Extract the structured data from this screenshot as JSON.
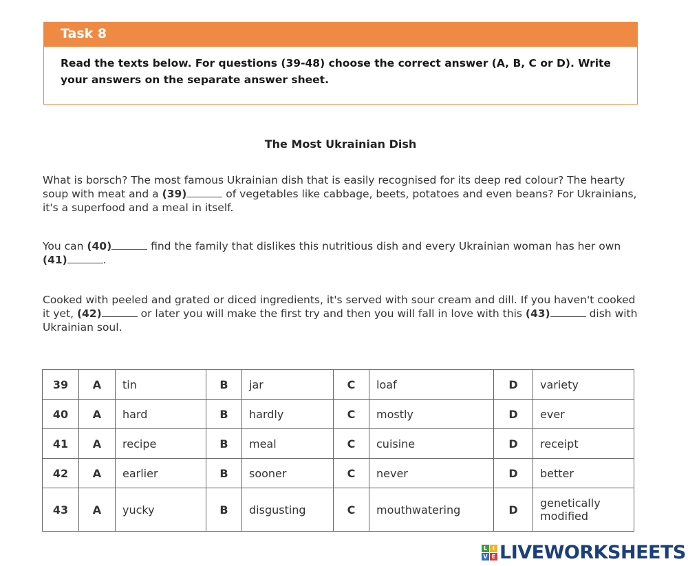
{
  "task": {
    "heading": "Task 8",
    "instructions": "Read the texts below. For questions (39-48) choose the correct answer (A, B, C or D). Write your answers on the separate answer sheet."
  },
  "title": "The Most Ukrainian Dish",
  "paragraphs": {
    "p1a": "What is borsch? The most famous Ukrainian dish that is easily recognised for its deep red colour? The hearty soup with meat and a ",
    "q39": "(39)",
    "p1b": " of vegetables like cabbage, beets, potatoes and even beans? For Ukrainians, it's a superfood and a meal in itself.",
    "p2a": "You can ",
    "q40": "(40)",
    "p2b": " find the family that dislikes this nutritious dish and every Ukrainian woman has her own ",
    "q41": "(41)",
    "p2c": ".",
    "p3a": "Cooked with peeled and grated or diced ingredients, it's served with sour cream and dill. If you haven't cooked it yet, ",
    "q42": "(42)",
    "p3b": " or later you will make the first try and then you will fall in love with this ",
    "q43": "(43)",
    "p3c": " dish with Ukrainian soul."
  },
  "table": {
    "letters": [
      "A",
      "B",
      "C",
      "D"
    ],
    "rows": [
      {
        "num": "39",
        "options": [
          "tin",
          "jar",
          "loaf",
          "variety"
        ]
      },
      {
        "num": "40",
        "options": [
          "hard",
          "hardly",
          "mostly",
          "ever"
        ]
      },
      {
        "num": "41",
        "options": [
          "recipe",
          "meal",
          "cuisine",
          "receipt"
        ]
      },
      {
        "num": "42",
        "options": [
          "earlier",
          "sooner",
          "never",
          "better"
        ]
      },
      {
        "num": "43",
        "options": [
          "yucky",
          "disgusting",
          "mouthwatering",
          "genetically modified"
        ]
      }
    ]
  },
  "logo": {
    "text": "LIVEWORKSHEETS",
    "cube_letters": [
      "L",
      "I",
      "V",
      "E"
    ]
  },
  "colors": {
    "accent": "#ef8a45",
    "logo": "#1b3f7a"
  }
}
